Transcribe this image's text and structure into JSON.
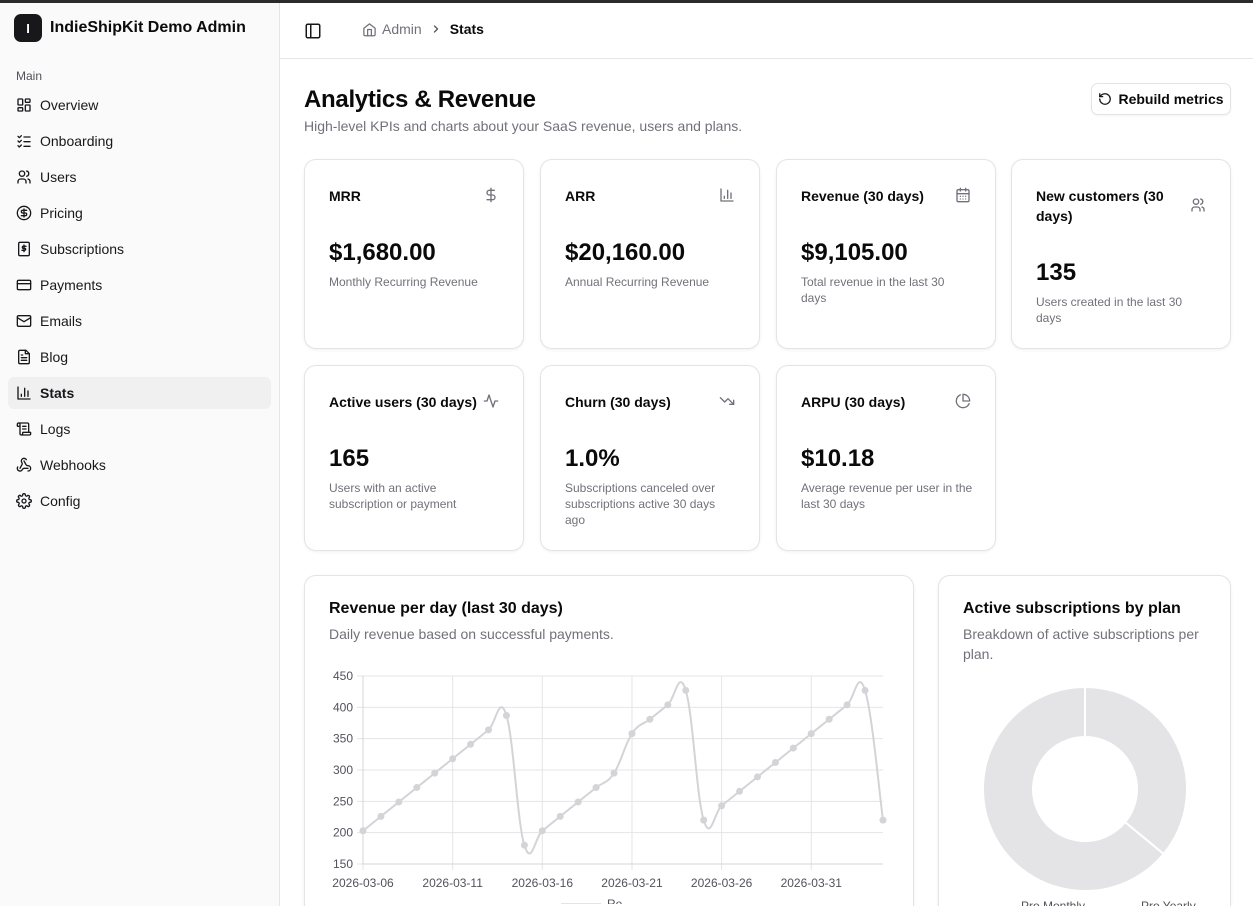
{
  "brand": {
    "logo_letter": "I",
    "name": "IndieShipKit Demo Admin"
  },
  "sidebar": {
    "section_label": "Main",
    "items": [
      {
        "label": "Overview",
        "icon": "layout-dashboard-icon"
      },
      {
        "label": "Onboarding",
        "icon": "list-checks-icon"
      },
      {
        "label": "Users",
        "icon": "users-icon"
      },
      {
        "label": "Pricing",
        "icon": "dollar-circle-icon"
      },
      {
        "label": "Subscriptions",
        "icon": "receipt-icon"
      },
      {
        "label": "Payments",
        "icon": "credit-card-icon"
      },
      {
        "label": "Emails",
        "icon": "mail-icon"
      },
      {
        "label": "Blog",
        "icon": "file-text-icon"
      },
      {
        "label": "Stats",
        "icon": "bar-chart-icon",
        "active": true
      },
      {
        "label": "Logs",
        "icon": "scroll-icon"
      },
      {
        "label": "Webhooks",
        "icon": "webhook-icon"
      },
      {
        "label": "Config",
        "icon": "gear-icon"
      }
    ]
  },
  "breadcrumb": {
    "root": "Admin",
    "current": "Stats"
  },
  "page": {
    "title": "Analytics & Revenue",
    "subtitle": "High-level KPIs and charts about your SaaS revenue, users and plans.",
    "rebuild_label": "Rebuild metrics"
  },
  "kpis": [
    {
      "title": "MRR",
      "value": "$1,680.00",
      "desc": "Monthly Recurring Revenue",
      "icon": "dollar-icon"
    },
    {
      "title": "ARR",
      "value": "$20,160.00",
      "desc": "Annual Recurring Revenue",
      "icon": "bar-chart-icon"
    },
    {
      "title": "Revenue (30 days)",
      "value": "$9,105.00",
      "desc": "Total revenue in the last 30 days",
      "icon": "calendar-icon"
    },
    {
      "title": "New customers (30 days)",
      "value": "135",
      "desc": "Users created in the last 30 days",
      "icon": "users-icon"
    },
    {
      "title": "Active users (30 days)",
      "value": "165",
      "desc": "Users with an active subscription or payment",
      "icon": "activity-icon"
    },
    {
      "title": "Churn (30 days)",
      "value": "1.0%",
      "desc": "Subscriptions canceled over subscriptions active 30 days ago",
      "icon": "trending-down-icon"
    },
    {
      "title": "ARPU (30 days)",
      "value": "$10.18",
      "desc": "Average revenue per user in the last 30 days",
      "icon": "pie-chart-icon"
    }
  ],
  "revenue_panel": {
    "title": "Revenue per day (last 30 days)",
    "subtitle": "Daily revenue based on successful payments."
  },
  "plans_panel": {
    "title": "Active subscriptions by plan",
    "subtitle": "Breakdown of active subscriptions per plan."
  },
  "colors": {
    "chart_line": "#d4d4d8",
    "chart_point": "#d4d4d8",
    "donut_fill": "#e4e4e7",
    "accent": "#18181b"
  },
  "chart_data": [
    {
      "type": "line",
      "x": [
        "2026-03-06",
        "2026-03-07",
        "2026-03-08",
        "2026-03-09",
        "2026-03-10",
        "2026-03-11",
        "2026-03-12",
        "2026-03-13",
        "2026-03-14",
        "2026-03-15",
        "2026-03-16",
        "2026-03-17",
        "2026-03-18",
        "2026-03-19",
        "2026-03-20",
        "2026-03-21",
        "2026-03-22",
        "2026-03-23",
        "2026-03-24",
        "2026-03-25",
        "2026-03-26",
        "2026-03-27",
        "2026-03-28",
        "2026-03-29",
        "2026-03-30",
        "2026-03-31",
        "2026-04-01",
        "2026-04-02",
        "2026-04-03",
        "2026-04-04"
      ],
      "series": [
        {
          "name": "Re",
          "values": [
            203,
            226,
            249,
            272,
            295,
            318,
            341,
            364,
            387,
            180,
            203,
            226,
            249,
            272,
            295,
            358,
            381,
            404,
            427,
            220,
            243,
            266,
            289,
            312,
            335,
            358,
            381,
            404,
            427,
            220
          ]
        }
      ],
      "x_tick_labels": [
        "2026-03-06",
        "2026-03-11",
        "2026-03-16",
        "2026-03-21",
        "2026-03-26",
        "2026-03-31"
      ],
      "y_ticks": [
        150,
        200,
        250,
        300,
        350,
        400,
        450
      ],
      "ylim": [
        150,
        450
      ],
      "grid": true
    },
    {
      "type": "pie",
      "categories": [
        "Pro Monthly",
        "Pro Yearly"
      ],
      "values": [
        36,
        64
      ],
      "donut": true,
      "legend": "bottom"
    }
  ]
}
